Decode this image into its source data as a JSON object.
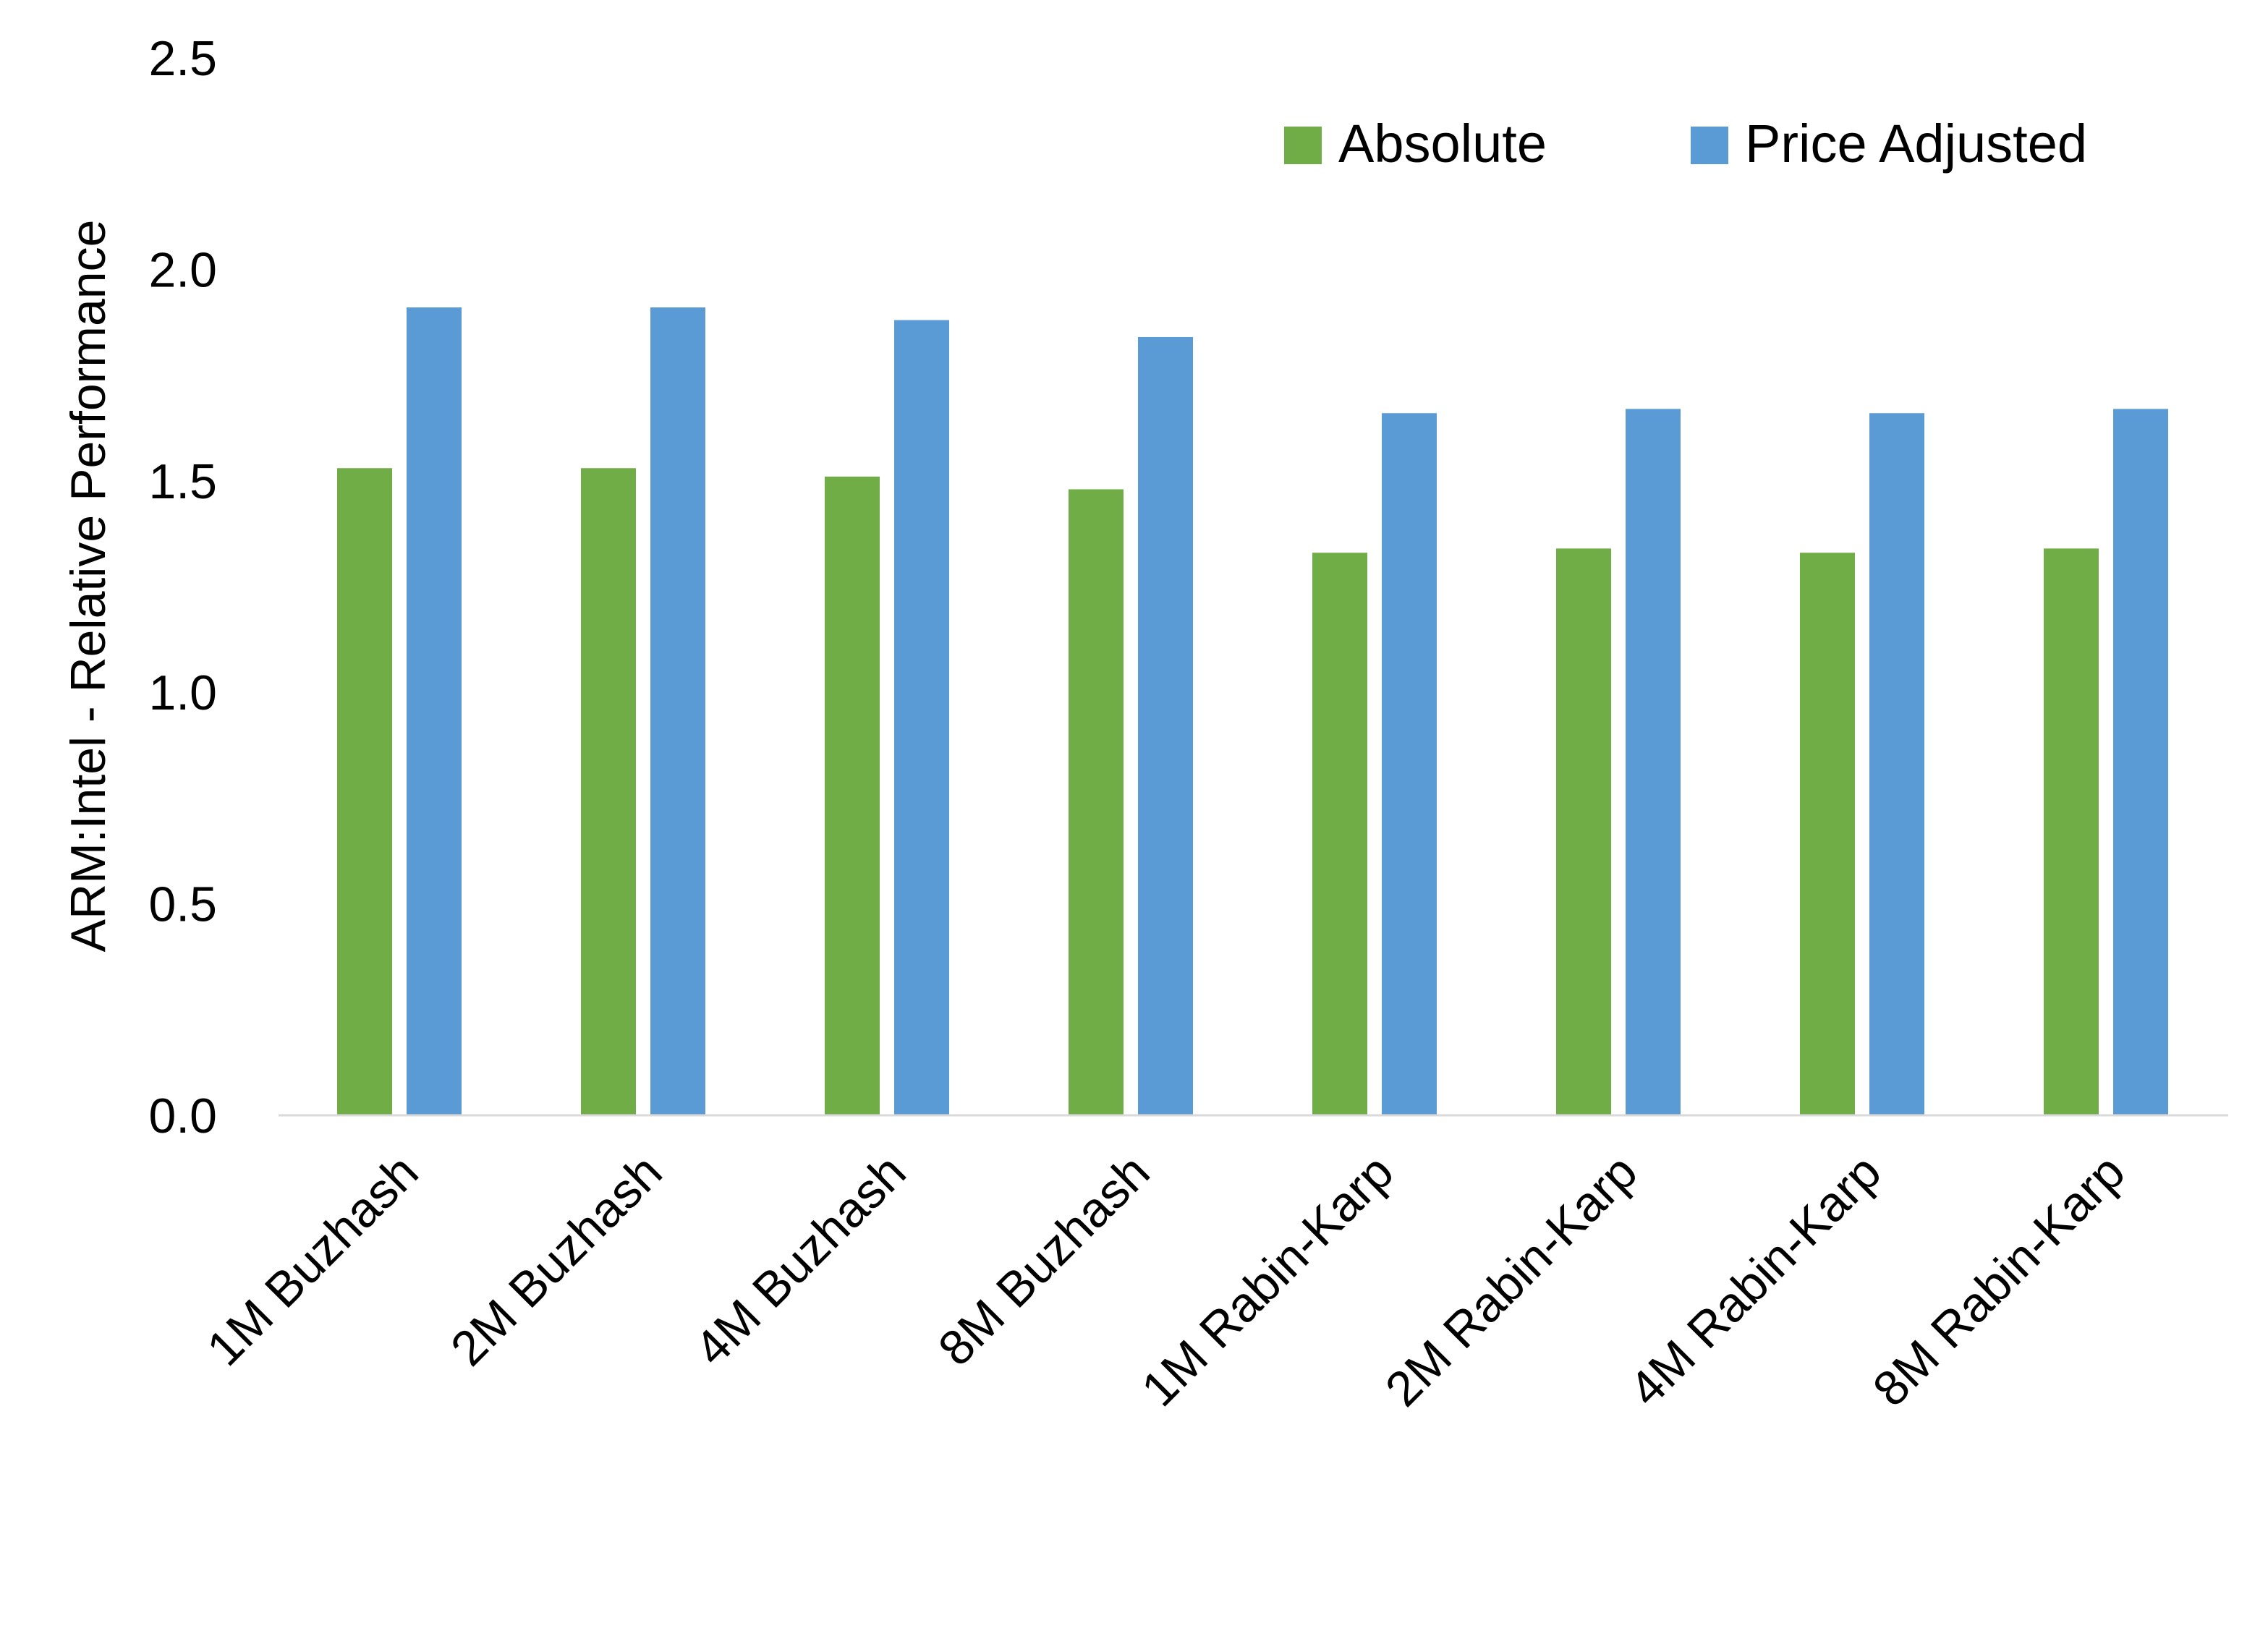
{
  "chart_data": {
    "type": "bar",
    "title": "",
    "xlabel": "",
    "ylabel": "ARM:Intel - Relative Performance",
    "ylim": [
      0,
      2.5
    ],
    "yticks": [
      "0.0",
      "0.5",
      "1.0",
      "1.5",
      "2.0",
      "2.5"
    ],
    "grid": false,
    "legend_placement": "top-right",
    "categories": [
      "1M Buzhash",
      "2M Buzhash",
      "4M Buzhash",
      "8M Buzhash",
      "1M Rabin-Karp",
      "2M Rabin-Karp",
      "4M Rabin-Karp",
      "8M Rabin-Karp"
    ],
    "series": [
      {
        "name": "Absolute",
        "color": "#70AD47",
        "values": [
          1.53,
          1.53,
          1.51,
          1.48,
          1.33,
          1.34,
          1.33,
          1.34
        ]
      },
      {
        "name": "Price Adjusted",
        "color": "#5B9BD5",
        "values": [
          1.91,
          1.91,
          1.88,
          1.84,
          1.66,
          1.67,
          1.66,
          1.67
        ]
      }
    ]
  }
}
